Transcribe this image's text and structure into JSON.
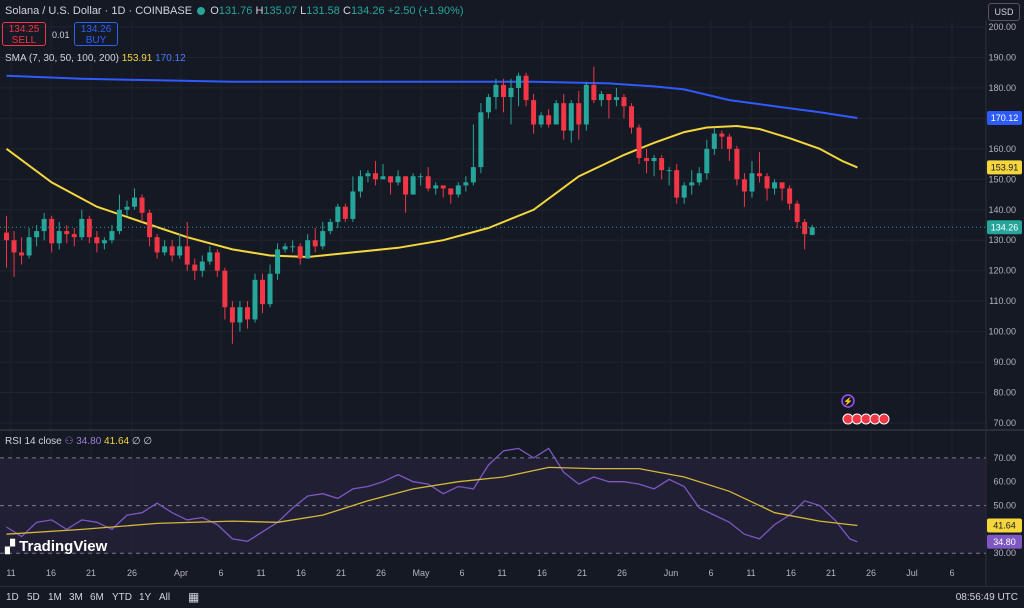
{
  "header": {
    "symbol_line": "Solana / U.S. Dollar · 1D · COINBASE",
    "o_label": "O",
    "o_value": "131.76",
    "h_label": "H",
    "h_value": "135.07",
    "l_label": "L",
    "l_value": "131.58",
    "c_label": "C",
    "c_value": "134.26",
    "change": "+2.50 (+1.90%)",
    "sell_price": "134.25",
    "sell_label": "SELL",
    "spread": "0.01",
    "buy_price": "134.26",
    "buy_label": "BUY",
    "currency": "USD"
  },
  "sma_legend": {
    "label": "SMA (7, 30, 50, 100, 200)",
    "v1": "153.91",
    "v2": "170.12"
  },
  "rsi_legend": {
    "label": "RSI 14 close",
    "v1": "34.80",
    "v2": "41.64",
    "extra": "∅ ∅"
  },
  "logo_text": "TradingView",
  "bottom": {
    "ranges": [
      "1D",
      "5D",
      "1M",
      "3M",
      "6M",
      "YTD",
      "1Y",
      "All"
    ],
    "clock": "08:56:49 UTC"
  },
  "colors": {
    "up": "#26a69a",
    "down": "#f23645",
    "sma_fast": "#f5d63d",
    "sma_slow": "#2e5bff",
    "rsi": "#7e57c2",
    "rsi_ma": "#d4b83a",
    "bg": "#151924"
  },
  "chart_data": {
    "type": "candlestick",
    "price_axis": {
      "ticks": [
        200,
        190,
        180,
        170,
        160,
        150,
        140,
        130,
        120,
        110,
        100,
        90,
        80,
        70
      ],
      "ylim": [
        70,
        200
      ]
    },
    "price_labels": {
      "last": "134.26",
      "sma_fast": "153.91",
      "sma_slow": "170.12"
    },
    "x_ticks": [
      "11",
      "16",
      "21",
      "26",
      "Apr",
      "6",
      "11",
      "16",
      "21",
      "26",
      "May",
      "6",
      "11",
      "16",
      "21",
      "26",
      "Jun",
      "6",
      "11",
      "16",
      "21",
      "26",
      "Jul",
      "6"
    ],
    "candles": [
      [
        132.5,
        130.0,
        138.0,
        121.0
      ],
      [
        130.0,
        126.0,
        133.0,
        118.0
      ],
      [
        126.0,
        125.0,
        131.0,
        122.0
      ],
      [
        125.0,
        131.0,
        134.0,
        124.0
      ],
      [
        131.0,
        133.0,
        135.0,
        128.0
      ],
      [
        133.0,
        137.0,
        139.0,
        130.0
      ],
      [
        137.0,
        129.0,
        138.0,
        126.0
      ],
      [
        129.0,
        133.0,
        136.0,
        127.0
      ],
      [
        133.0,
        132.0,
        135.0,
        129.0
      ],
      [
        132.0,
        131.0,
        134.0,
        128.0
      ],
      [
        131.0,
        137.0,
        140.0,
        130.0
      ],
      [
        137.0,
        131.0,
        138.0,
        129.0
      ],
      [
        131.0,
        129.0,
        133.0,
        126.0
      ],
      [
        129.0,
        130.0,
        131.0,
        127.0
      ],
      [
        130.0,
        133.0,
        135.0,
        129.0
      ],
      [
        133.0,
        140.0,
        145.0,
        132.0
      ],
      [
        140.0,
        141.0,
        143.0,
        138.0
      ],
      [
        141.0,
        144.0,
        147.0,
        140.0
      ],
      [
        144.0,
        139.0,
        145.0,
        136.0
      ],
      [
        139.0,
        131.0,
        140.0,
        128.0
      ],
      [
        131.0,
        126.0,
        132.0,
        124.0
      ],
      [
        126.0,
        128.0,
        130.0,
        125.0
      ],
      [
        128.0,
        125.0,
        130.0,
        123.0
      ],
      [
        125.0,
        128.0,
        132.0,
        124.0
      ],
      [
        128.0,
        122.0,
        136.0,
        120.0
      ],
      [
        122.0,
        120.0,
        124.0,
        117.0
      ],
      [
        120.0,
        123.0,
        125.0,
        118.0
      ],
      [
        123.0,
        126.0,
        128.0,
        122.0
      ],
      [
        126.0,
        120.0,
        127.0,
        118.0
      ],
      [
        120.0,
        108.0,
        121.0,
        104.0
      ],
      [
        108.0,
        103.0,
        110.0,
        96.0
      ],
      [
        103.0,
        108.0,
        110.0,
        100.0
      ],
      [
        108.0,
        104.0,
        110.0,
        101.0
      ],
      [
        104.0,
        117.0,
        119.0,
        103.0
      ],
      [
        117.0,
        109.0,
        119.0,
        106.0
      ],
      [
        109.0,
        119.0,
        122.0,
        108.0
      ],
      [
        119.0,
        127.0,
        129.0,
        117.0
      ],
      [
        127.0,
        128.0,
        129.0,
        126.0
      ],
      [
        128.0,
        128.0,
        130.0,
        126.0
      ],
      [
        128.0,
        124.0,
        129.0,
        122.0
      ],
      [
        124.0,
        130.0,
        132.0,
        124.0
      ],
      [
        130.0,
        128.0,
        134.0,
        126.0
      ],
      [
        128.0,
        133.0,
        136.0,
        127.0
      ],
      [
        133.0,
        136.0,
        137.0,
        132.0
      ],
      [
        136.0,
        141.0,
        142.0,
        134.0
      ],
      [
        141.0,
        137.0,
        142.0,
        136.0
      ],
      [
        137.0,
        146.0,
        151.0,
        136.0
      ],
      [
        146.0,
        151.0,
        153.0,
        144.0
      ],
      [
        151.0,
        152.0,
        153.0,
        149.0
      ],
      [
        152.0,
        150.0,
        156.0,
        148.0
      ],
      [
        150.0,
        151.0,
        155.0,
        150.0
      ],
      [
        151.0,
        149.0,
        151.0,
        145.0
      ],
      [
        149.0,
        151.0,
        153.0,
        148.0
      ],
      [
        151.0,
        145.0,
        151.0,
        139.0
      ],
      [
        145.0,
        151.0,
        152.0,
        145.0
      ],
      [
        151.0,
        151.0,
        152.0,
        148.0
      ],
      [
        151.0,
        147.0,
        154.0,
        146.0
      ],
      [
        147.0,
        148.0,
        149.0,
        145.0
      ],
      [
        148.0,
        147.0,
        148.0,
        144.0
      ],
      [
        147.0,
        145.0,
        147.0,
        142.0
      ],
      [
        145.0,
        148.0,
        149.0,
        144.0
      ],
      [
        148.0,
        149.0,
        151.0,
        146.0
      ],
      [
        149.0,
        154.0,
        168.0,
        148.0
      ],
      [
        154.0,
        172.0,
        175.0,
        152.0
      ],
      [
        172.0,
        177.0,
        178.0,
        170.0
      ],
      [
        177.0,
        181.0,
        183.0,
        173.0
      ],
      [
        181.0,
        177.0,
        183.0,
        172.0
      ],
      [
        177.0,
        180.0,
        183.0,
        168.0
      ],
      [
        180.0,
        184.0,
        185.0,
        174.0
      ],
      [
        184.0,
        176.0,
        185.0,
        174.0
      ],
      [
        176.0,
        168.0,
        178.0,
        165.0
      ],
      [
        168.0,
        171.0,
        172.0,
        167.0
      ],
      [
        171.0,
        168.0,
        173.0,
        167.0
      ],
      [
        168.0,
        175.0,
        176.0,
        170.0
      ],
      [
        175.0,
        166.0,
        178.0,
        163.0
      ],
      [
        166.0,
        175.0,
        176.0,
        162.0
      ],
      [
        175.0,
        168.0,
        179.0,
        163.0
      ],
      [
        168.0,
        181.0,
        182.0,
        166.0
      ],
      [
        181.0,
        176.0,
        187.0,
        175.0
      ],
      [
        176.0,
        178.0,
        179.0,
        174.0
      ],
      [
        178.0,
        176.0,
        178.0,
        170.0
      ],
      [
        176.0,
        177.0,
        180.0,
        174.0
      ],
      [
        177.0,
        174.0,
        178.0,
        170.0
      ],
      [
        174.0,
        167.0,
        175.0,
        165.0
      ],
      [
        167.0,
        157.0,
        168.0,
        155.0
      ],
      [
        157.0,
        156.0,
        160.0,
        152.0
      ],
      [
        156.0,
        157.0,
        158.0,
        151.0
      ],
      [
        157.0,
        153.0,
        158.0,
        150.0
      ],
      [
        153.0,
        153.0,
        154.0,
        148.0
      ],
      [
        153.0,
        144.0,
        155.0,
        142.0
      ],
      [
        144.0,
        148.0,
        149.0,
        142.0
      ],
      [
        148.0,
        149.0,
        153.0,
        145.0
      ],
      [
        149.0,
        152.0,
        154.0,
        148.0
      ],
      [
        152.0,
        160.0,
        163.0,
        150.0
      ],
      [
        160.0,
        165.0,
        167.0,
        158.0
      ],
      [
        165.0,
        164.0,
        166.0,
        160.0
      ],
      [
        164.0,
        160.0,
        165.0,
        156.0
      ],
      [
        160.0,
        150.0,
        161.0,
        148.0
      ],
      [
        150.0,
        146.0,
        152.0,
        141.0
      ],
      [
        146.0,
        152.0,
        156.0,
        144.0
      ],
      [
        152.0,
        151.0,
        159.0,
        149.0
      ],
      [
        151.0,
        147.0,
        152.0,
        143.0
      ],
      [
        147.0,
        149.0,
        150.0,
        145.0
      ],
      [
        149.0,
        147.0,
        149.0,
        143.0
      ],
      [
        147.0,
        142.0,
        148.0,
        140.0
      ],
      [
        142.0,
        136.0,
        143.0,
        134.0
      ],
      [
        136.0,
        132.0,
        137.0,
        127.0
      ],
      [
        131.76,
        134.26,
        135.07,
        131.58
      ]
    ],
    "sma_fast": [
      [
        0,
        160
      ],
      [
        6,
        149
      ],
      [
        12,
        141
      ],
      [
        18,
        136
      ],
      [
        24,
        131
      ],
      [
        30,
        127
      ],
      [
        35,
        125
      ],
      [
        40,
        124.5
      ],
      [
        46,
        126
      ],
      [
        52,
        127.5
      ],
      [
        58,
        130
      ],
      [
        64,
        134
      ],
      [
        70,
        140
      ],
      [
        76,
        151
      ],
      [
        82,
        158
      ],
      [
        86,
        162
      ],
      [
        90,
        165.5
      ],
      [
        93,
        167
      ],
      [
        97,
        167.5
      ],
      [
        100,
        166.5
      ],
      [
        104,
        163.5
      ],
      [
        108,
        160
      ],
      [
        111,
        156
      ],
      [
        113,
        153.91
      ]
    ],
    "sma_slow": [
      [
        0,
        184
      ],
      [
        10,
        183
      ],
      [
        20,
        182.5
      ],
      [
        30,
        182
      ],
      [
        40,
        182
      ],
      [
        50,
        182
      ],
      [
        60,
        182
      ],
      [
        70,
        182
      ],
      [
        80,
        181.5
      ],
      [
        86,
        180.5
      ],
      [
        90,
        179.5
      ],
      [
        96,
        176
      ],
      [
        102,
        174
      ],
      [
        108,
        172
      ],
      [
        113,
        170.12
      ]
    ],
    "rsi": {
      "ticks": [
        70,
        60,
        50,
        40,
        30
      ],
      "ylim": [
        28,
        75
      ],
      "last": "34.80",
      "ma_last": "41.64",
      "values": [
        [
          0,
          41
        ],
        [
          2,
          37
        ],
        [
          4,
          43
        ],
        [
          6,
          44
        ],
        [
          8,
          40
        ],
        [
          10,
          44
        ],
        [
          12,
          43
        ],
        [
          14,
          40
        ],
        [
          16,
          46
        ],
        [
          18,
          47
        ],
        [
          20,
          51
        ],
        [
          22,
          47
        ],
        [
          24,
          44
        ],
        [
          26,
          45
        ],
        [
          28,
          42
        ],
        [
          30,
          36
        ],
        [
          32,
          35
        ],
        [
          34,
          39
        ],
        [
          36,
          43
        ],
        [
          38,
          49
        ],
        [
          40,
          54
        ],
        [
          42,
          55
        ],
        [
          44,
          53
        ],
        [
          46,
          57
        ],
        [
          48,
          58
        ],
        [
          50,
          60
        ],
        [
          52,
          63
        ],
        [
          54,
          60
        ],
        [
          56,
          59
        ],
        [
          58,
          55
        ],
        [
          60,
          58
        ],
        [
          62,
          57
        ],
        [
          64,
          67
        ],
        [
          66,
          73
        ],
        [
          68,
          74
        ],
        [
          70,
          70
        ],
        [
          72,
          74
        ],
        [
          74,
          64
        ],
        [
          76,
          59
        ],
        [
          78,
          62
        ],
        [
          80,
          60
        ],
        [
          82,
          60
        ],
        [
          84,
          59
        ],
        [
          86,
          57
        ],
        [
          88,
          61
        ],
        [
          90,
          58
        ],
        [
          92,
          49
        ],
        [
          94,
          46
        ],
        [
          96,
          43
        ],
        [
          98,
          38
        ],
        [
          100,
          36
        ],
        [
          102,
          42
        ],
        [
          104,
          46
        ],
        [
          106,
          52
        ],
        [
          108,
          50
        ],
        [
          110,
          44
        ],
        [
          112,
          36
        ],
        [
          113,
          34.8
        ]
      ],
      "ma": [
        [
          0,
          38
        ],
        [
          10,
          40
        ],
        [
          20,
          42.5
        ],
        [
          30,
          43.5
        ],
        [
          36,
          43
        ],
        [
          42,
          46
        ],
        [
          48,
          52
        ],
        [
          54,
          57
        ],
        [
          60,
          60
        ],
        [
          66,
          62
        ],
        [
          72,
          66
        ],
        [
          78,
          65.5
        ],
        [
          84,
          65.5
        ],
        [
          90,
          62
        ],
        [
          96,
          56
        ],
        [
          102,
          47
        ],
        [
          108,
          43.5
        ],
        [
          113,
          41.64
        ]
      ]
    }
  }
}
